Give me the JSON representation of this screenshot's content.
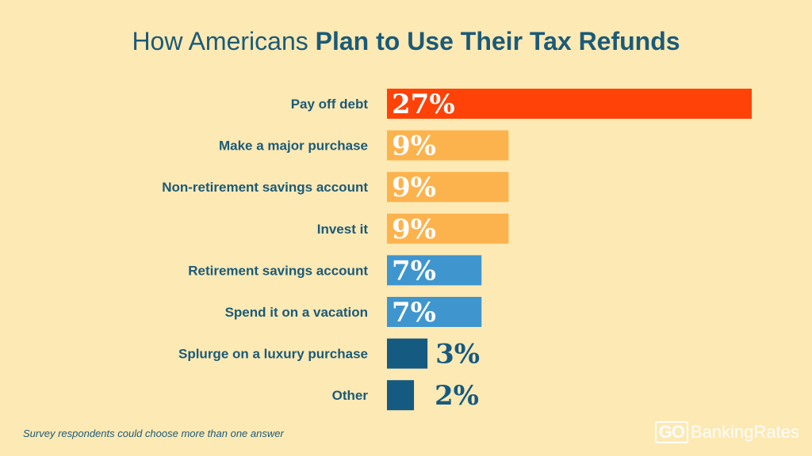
{
  "title": {
    "prefix": "How Americans ",
    "bold": "Plan to Use Their Tax Refunds"
  },
  "footnote": "Survey respondents could choose more than one answer",
  "logo": {
    "go": "GO",
    "text": "BankingRates"
  },
  "colors": {
    "background": "#fde9b4",
    "text": "#1b5a78",
    "highlight": "#ff4208",
    "orange": "#fdb34d",
    "blue": "#3f96cf",
    "navy": "#155a80"
  },
  "chart_data": {
    "type": "bar",
    "orientation": "horizontal",
    "categories": [
      "Pay off debt",
      "Make a major purchase",
      "Non-retirement savings account",
      "Invest it",
      "Retirement savings account",
      "Spend it on a vacation",
      "Splurge on a luxury purchase",
      "Other"
    ],
    "values": [
      27,
      9,
      9,
      9,
      7,
      7,
      3,
      2
    ],
    "value_labels": [
      "27%",
      "9%",
      "9%",
      "9%",
      "7%",
      "7%",
      "3%",
      "2%"
    ],
    "bar_colors": [
      "#ff4208",
      "#fdb34d",
      "#fdb34d",
      "#fdb34d",
      "#3f96cf",
      "#3f96cf",
      "#155a80",
      "#155a80"
    ],
    "unit": "%",
    "xlim": [
      0,
      27
    ],
    "grid": false,
    "legend": "none"
  }
}
